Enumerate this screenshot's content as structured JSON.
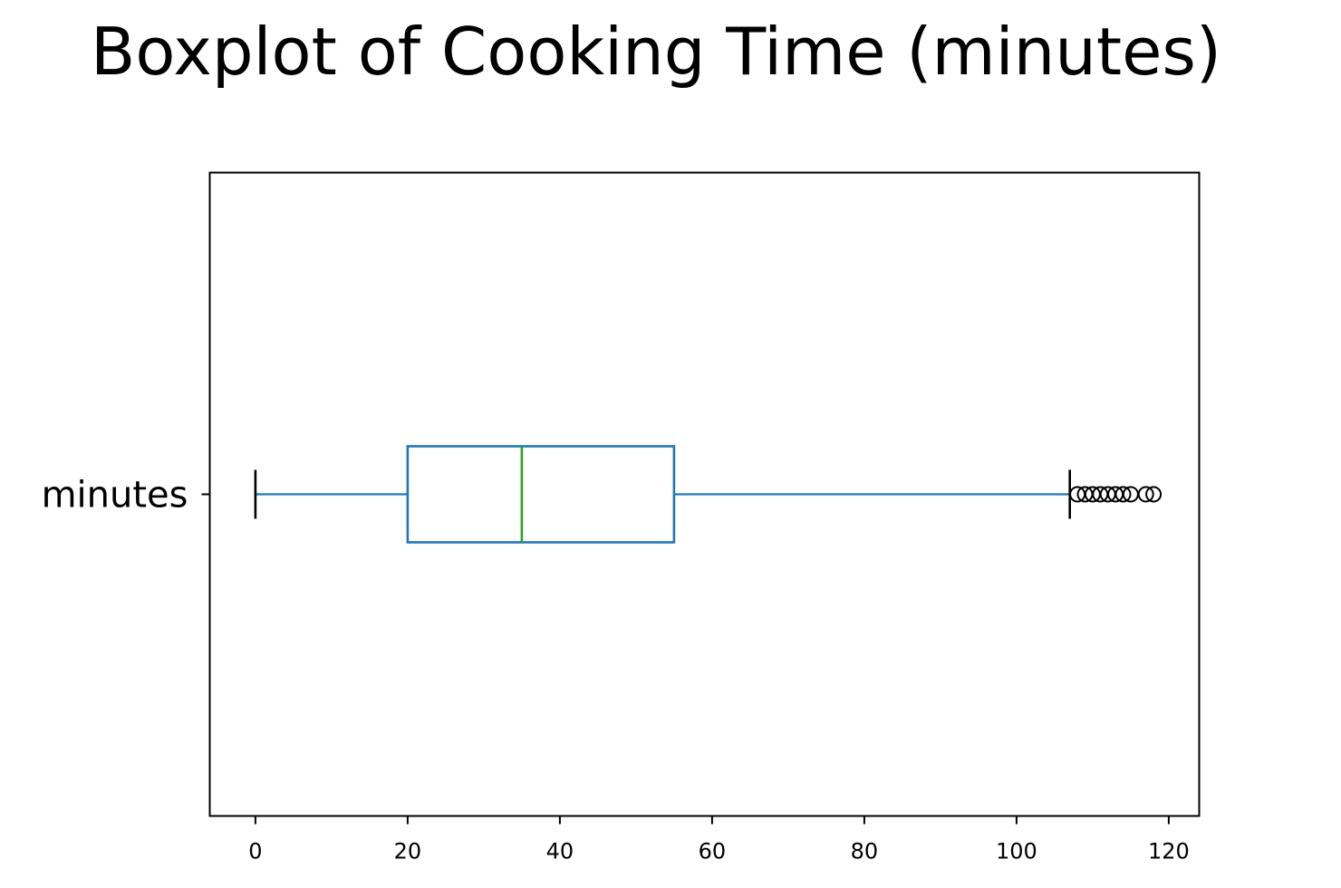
{
  "chart_data": {
    "type": "boxplot",
    "orientation": "horizontal",
    "title": "Boxplot of Cooking Time (minutes)",
    "xlabel": "",
    "ylabel": "",
    "categories": [
      "minutes"
    ],
    "xlim": [
      -6,
      124
    ],
    "xticks": [
      0,
      20,
      40,
      60,
      80,
      100,
      120
    ],
    "xtick_labels": [
      "0",
      "20",
      "40",
      "60",
      "80",
      "100",
      "120"
    ],
    "grid": false,
    "boxes": [
      {
        "label": "minutes",
        "whisker_low": 0,
        "q1": 20,
        "median": 35,
        "q3": 55,
        "whisker_high": 107,
        "outliers": [
          108,
          109,
          110,
          111,
          112,
          113,
          114,
          115,
          117,
          118
        ]
      }
    ],
    "colors": {
      "box": "#1f77b4",
      "median": "#2ca02c",
      "caps": "#000000",
      "outliers": "#000000"
    }
  }
}
